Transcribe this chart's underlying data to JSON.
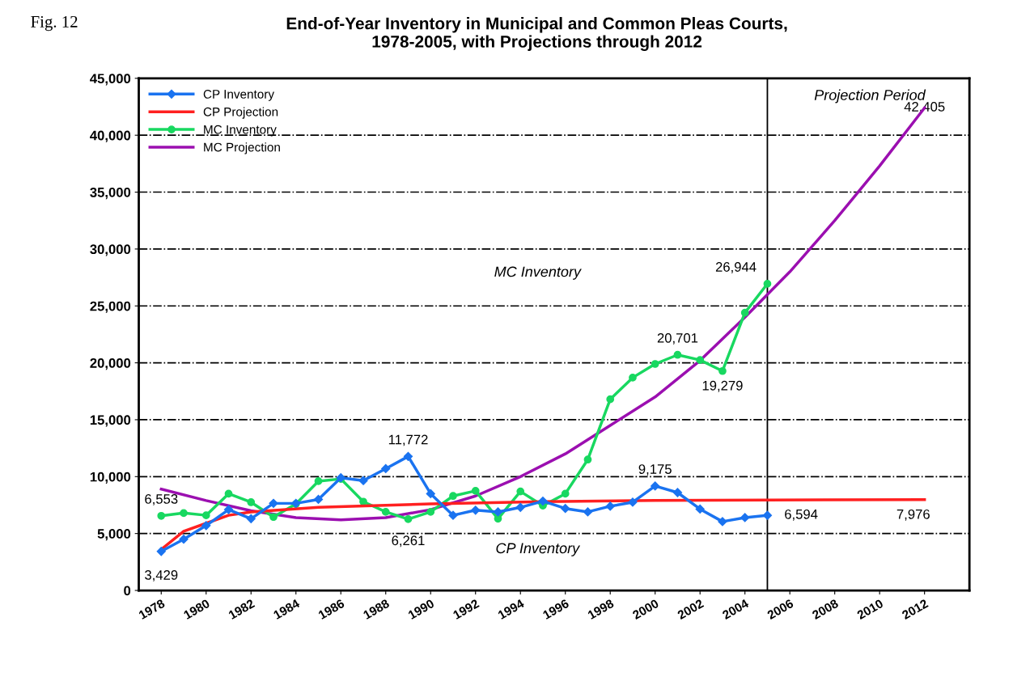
{
  "chart_data": {
    "type": "line",
    "title": "End-of-Year Inventory in Municipal and Common Pleas Courts,\n1978-2005, with Projections through 2012",
    "xlim": [
      1977,
      2014
    ],
    "xticks": [
      1978,
      1980,
      1982,
      1984,
      1986,
      1988,
      1990,
      1992,
      1994,
      1996,
      1998,
      2000,
      2002,
      2004,
      2006,
      2008,
      2010,
      2012
    ],
    "ylim": [
      0,
      45000
    ],
    "yticks": [
      {
        "value": 0,
        "label": "0"
      },
      {
        "value": 5000,
        "label": "5,000"
      },
      {
        "value": 10000,
        "label": "10,000"
      },
      {
        "value": 15000,
        "label": "15,000"
      },
      {
        "value": 20000,
        "label": "20,000"
      },
      {
        "value": 25000,
        "label": "25,000"
      },
      {
        "value": 30000,
        "label": "30,000"
      },
      {
        "value": 35000,
        "label": "35,000"
      },
      {
        "value": 40000,
        "label": "40,000"
      },
      {
        "value": 45000,
        "label": "45,000"
      }
    ],
    "grid": "y",
    "legend": "top left",
    "series": [
      {
        "name": "CP Inventory",
        "color": "#1a73f0",
        "marker": "diamond",
        "x": [
          1978,
          1979,
          1980,
          1981,
          1982,
          1983,
          1984,
          1985,
          1986,
          1987,
          1988,
          1989,
          1990,
          1991,
          1992,
          1993,
          1994,
          1995,
          1996,
          1997,
          1998,
          1999,
          2000,
          2001,
          2002,
          2003,
          2004,
          2005
        ],
        "values": [
          3429,
          4500,
          5700,
          7100,
          6300,
          7650,
          7650,
          8000,
          9900,
          9650,
          10700,
          11772,
          8500,
          6600,
          7050,
          6900,
          7300,
          7850,
          7200,
          6900,
          7400,
          7750,
          9175,
          8600,
          7150,
          6050,
          6400,
          6594
        ]
      },
      {
        "name": "CP Projection",
        "color": "#ff2020",
        "marker": "none",
        "x": [
          1978,
          1979,
          1980,
          1981,
          1982,
          1985,
          1990,
          1995,
          2000,
          2005,
          2012
        ],
        "values": [
          3600,
          5200,
          5900,
          6600,
          6900,
          7300,
          7600,
          7800,
          7900,
          7950,
          7976
        ]
      },
      {
        "name": "MC Inventory",
        "color": "#18d860",
        "marker": "circle",
        "x": [
          1978,
          1979,
          1980,
          1981,
          1982,
          1983,
          1984,
          1985,
          1986,
          1987,
          1988,
          1989,
          1990,
          1991,
          1992,
          1993,
          1994,
          1995,
          1996,
          1997,
          1998,
          1999,
          2000,
          2001,
          2002,
          2003,
          2004,
          2005
        ],
        "values": [
          6553,
          6800,
          6600,
          8500,
          7750,
          6450,
          7600,
          9600,
          9800,
          7800,
          6900,
          6261,
          6900,
          8300,
          8750,
          6300,
          8700,
          7450,
          8500,
          11500,
          16800,
          18700,
          19900,
          20701,
          20250,
          19279,
          24400,
          26944
        ]
      },
      {
        "name": "MC Projection",
        "color": "#9b0fb0",
        "marker": "none",
        "x": [
          1978,
          1980,
          1982,
          1984,
          1986,
          1988,
          1990,
          1992,
          1994,
          1996,
          1998,
          2000,
          2002,
          2004,
          2006,
          2008,
          2010,
          2012
        ],
        "values": [
          8900,
          7900,
          7000,
          6400,
          6200,
          6400,
          7100,
          8300,
          10000,
          12000,
          14500,
          17000,
          20200,
          24000,
          28000,
          32500,
          37300,
          42405
        ]
      }
    ],
    "ref_lines": [
      {
        "axis": "x",
        "value": 2005,
        "color": "#000000"
      }
    ],
    "annotations": [
      "Fig. 12",
      {
        "text": "3,429",
        "x": 1978,
        "y": 3429
      },
      {
        "text": "6,553",
        "x": 1978,
        "y": 6553
      },
      {
        "text": "11,772",
        "x": 1989,
        "y": 11772
      },
      {
        "text": "6,261",
        "x": 1989,
        "y": 6261
      },
      {
        "text": "9,175",
        "x": 2000,
        "y": 9175
      },
      {
        "text": "6,594",
        "x": 2005,
        "y": 6594
      },
      {
        "text": "7,976",
        "x": 2012,
        "y": 7976
      },
      {
        "text": "20,701",
        "x": 2001,
        "y": 20701
      },
      {
        "text": "19,279",
        "x": 2003,
        "y": 19279
      },
      {
        "text": "26,944",
        "x": 2005,
        "y": 26944
      },
      {
        "text": "42,405",
        "x": 2012,
        "y": 42405
      },
      "MC Inventory",
      "CP Inventory",
      "Projection Period"
    ]
  }
}
